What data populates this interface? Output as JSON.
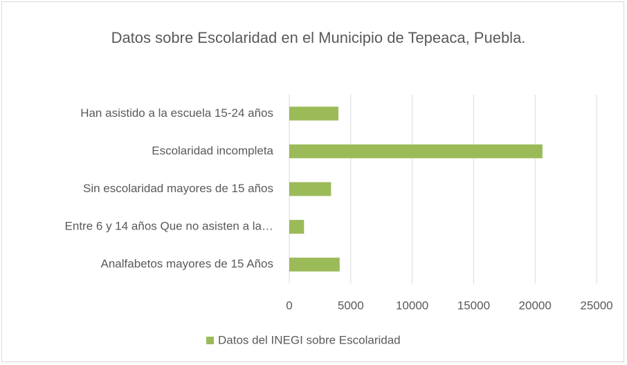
{
  "chart_data": {
    "type": "bar",
    "orientation": "horizontal",
    "title": "Datos sobre Escolaridad en el Municipio de Tepeaca, Puebla.",
    "categories": [
      "Han asistido a la escuela  15-24 años",
      "Escolaridad incompleta",
      "Sin escolaridad mayores de 15 años",
      "Entre 6 y 14 años Que no asisten a la…",
      "Analfabetos mayores de 15 Años"
    ],
    "series": [
      {
        "name": "Datos del INEGI sobre Escolaridad",
        "color": "#9bbb59",
        "values": [
          4000,
          20600,
          3400,
          1200,
          4100
        ]
      }
    ],
    "xlim": [
      0,
      25000
    ],
    "xticks": [
      0,
      5000,
      10000,
      15000,
      20000,
      25000
    ],
    "grid": true,
    "legend": "bottom"
  }
}
